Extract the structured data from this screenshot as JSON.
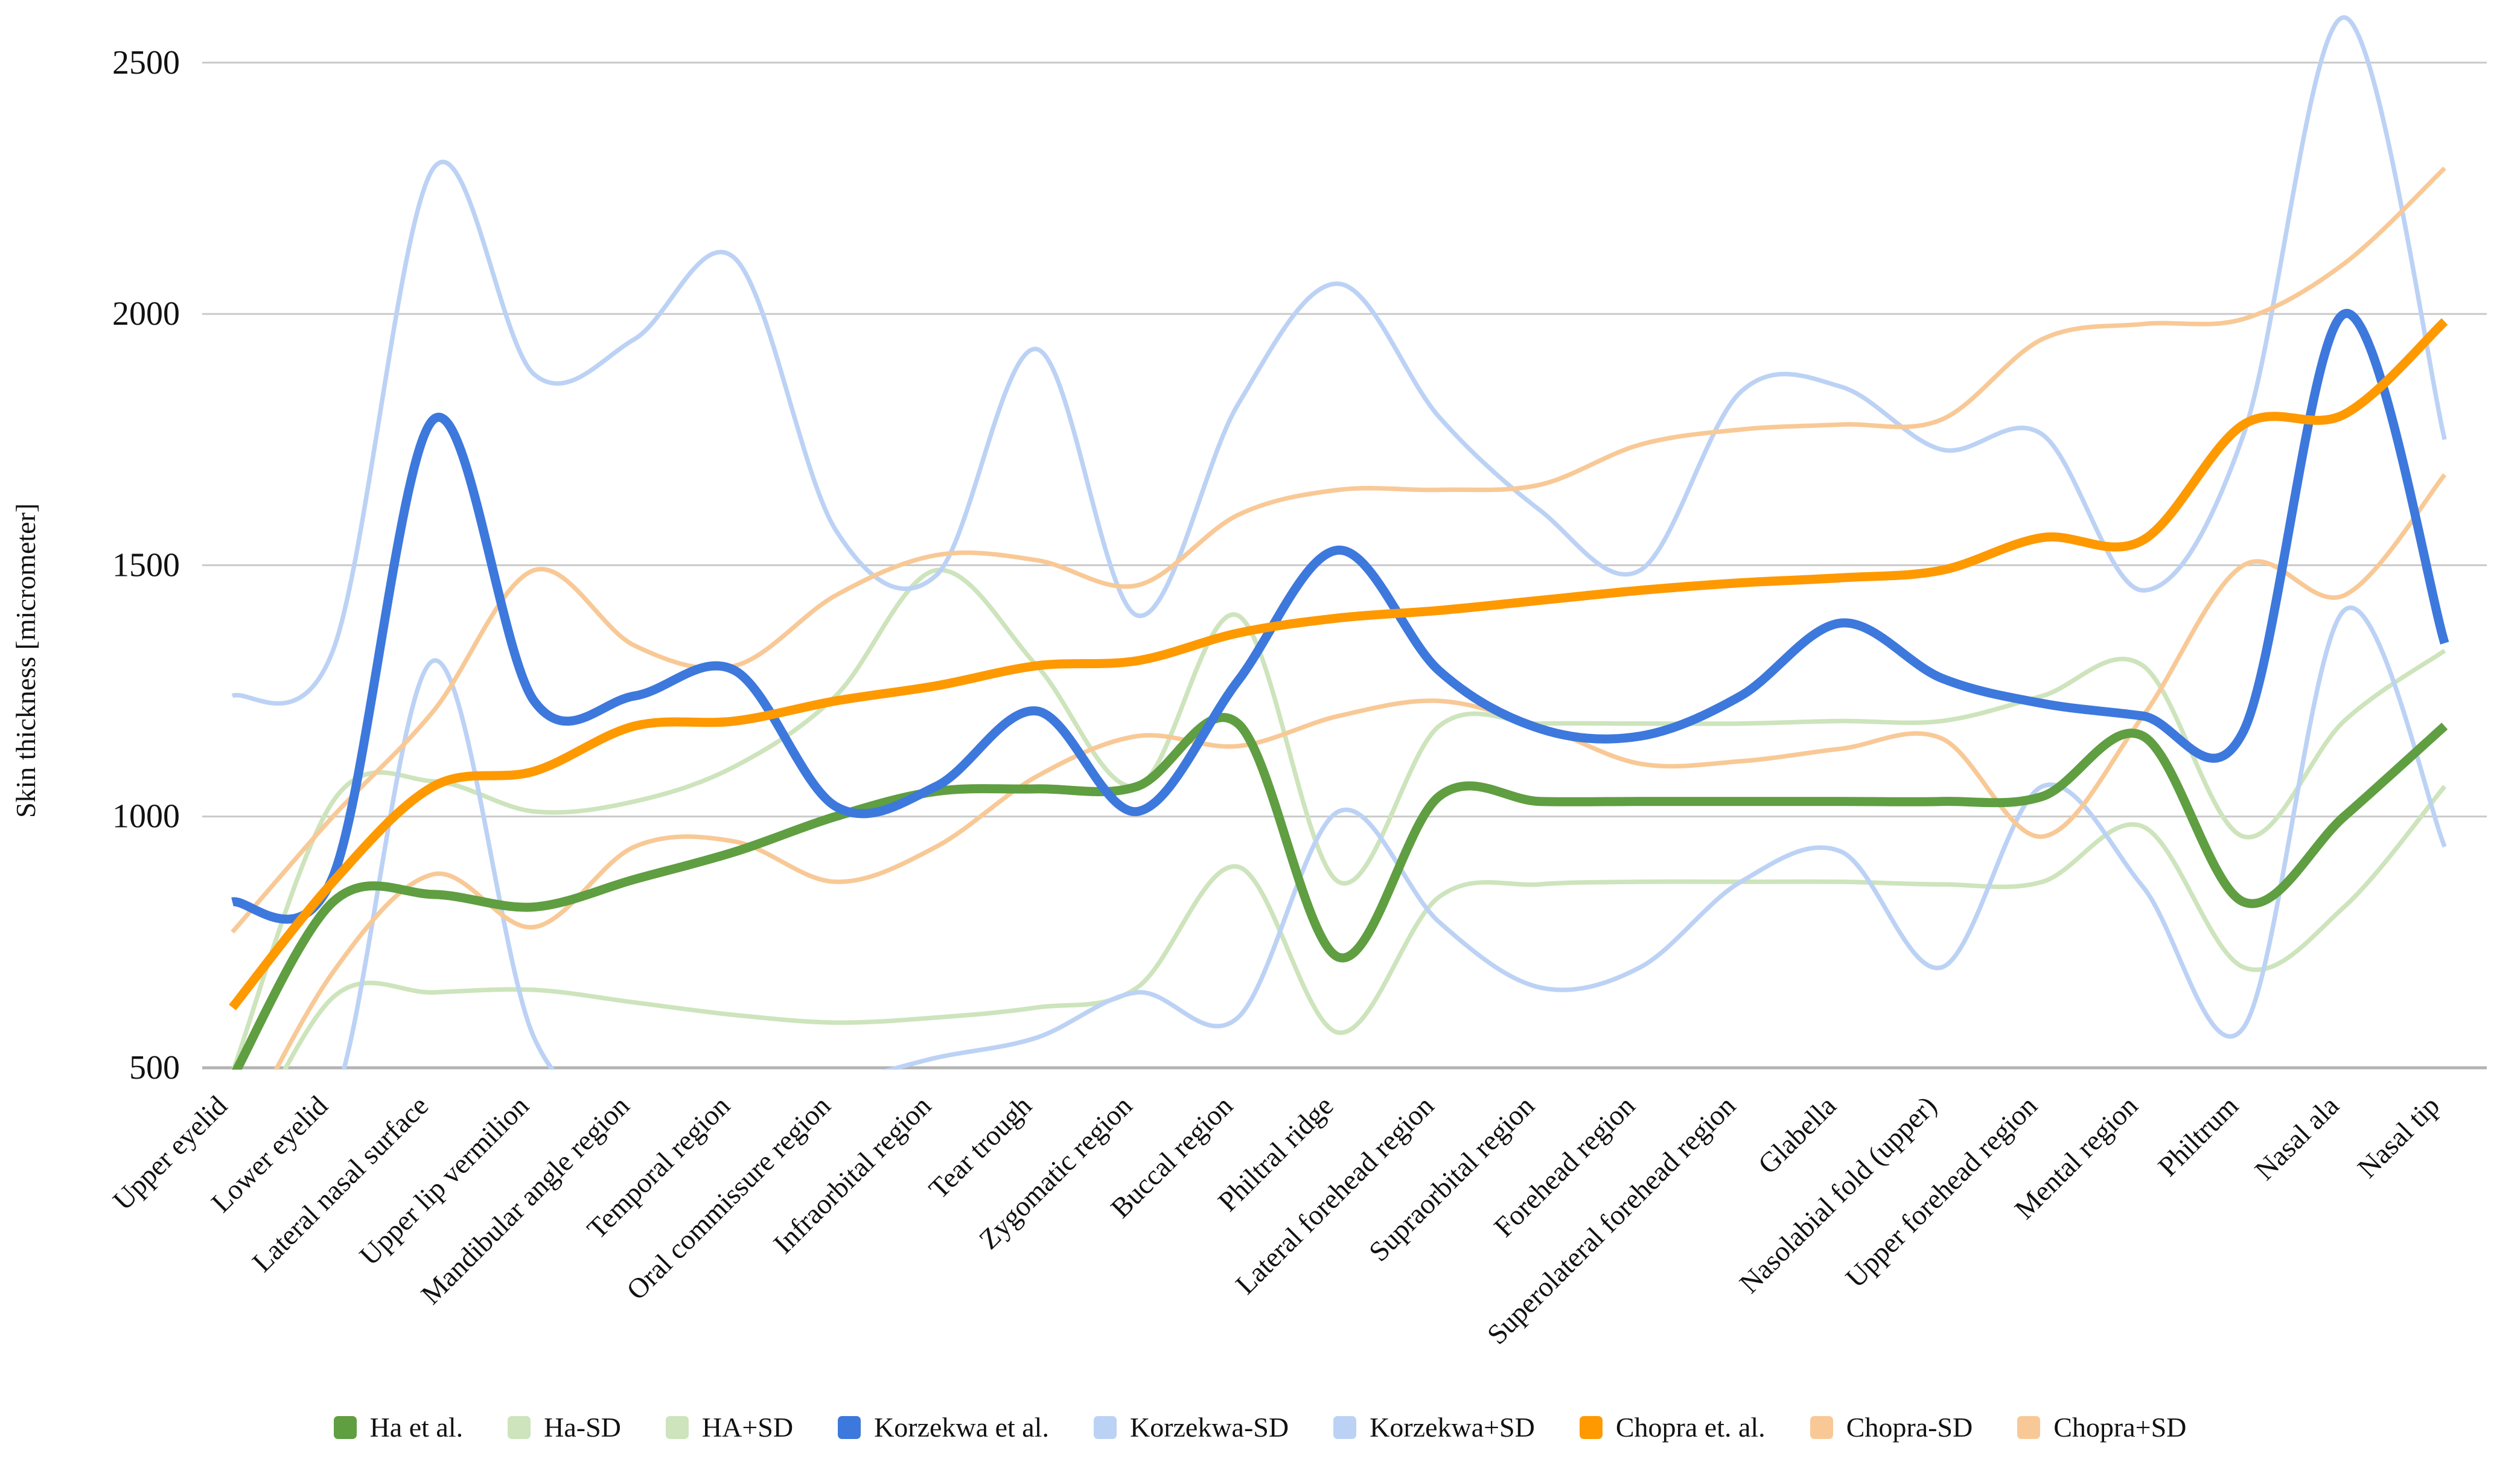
{
  "chart_data": {
    "type": "line",
    "title": "",
    "ylabel": "Skin thickness [micrometer]",
    "xlabel": "",
    "ylim": [
      500,
      2500
    ],
    "yticks": [
      500,
      1000,
      1500,
      2000,
      2500
    ],
    "grid": "horizontal",
    "legend_position": "bottom",
    "line_style": "smooth",
    "categories": [
      "Upper eyelid",
      "Lower eyelid",
      "Lateral nasal surface",
      "Upper lip vermilion",
      "Mandibular angle region",
      "Temporal region",
      "Oral commissure region",
      "Infraorbital region",
      "Tear trough",
      "Zygomatic region",
      "Buccal region",
      "Philtral ridge",
      "Lateral forehead region",
      "Supraorbital region",
      "Forehead region",
      "Superolateral forehead region",
      "Glabella",
      "Nasolabial fold (upper)",
      "Upper forehead region",
      "Mental region",
      "Philtrum",
      "Nasal ala",
      "Nasal tip"
    ],
    "series": [
      {
        "name": "Ha-SD",
        "color": "#cde4bc",
        "role": "sd",
        "values": [
          290,
          640,
          650,
          655,
          630,
          605,
          590,
          600,
          620,
          660,
          900,
          570,
          840,
          865,
          870,
          870,
          870,
          865,
          870,
          980,
          700,
          820,
          1060
        ]
      },
      {
        "name": "HA+SD",
        "color": "#cde4bc",
        "role": "sd",
        "values": [
          490,
          1030,
          1070,
          1010,
          1030,
          1100,
          1240,
          1490,
          1300,
          1060,
          1400,
          870,
          1180,
          1185,
          1185,
          1185,
          1190,
          1190,
          1240,
          1300,
          960,
          1190,
          1330
        ]
      },
      {
        "name": "Korzekwa-SD",
        "color": "#bcd2f5",
        "role": "sd",
        "values": [
          420,
          430,
          1310,
          560,
          430,
          450,
          470,
          520,
          560,
          650,
          600,
          1010,
          790,
          660,
          700,
          870,
          930,
          700,
          1060,
          860,
          580,
          1410,
          940
        ]
      },
      {
        "name": "Korzekwa+SD",
        "color": "#bcd2f5",
        "role": "sd",
        "values": [
          1240,
          1330,
          2290,
          1880,
          1950,
          2110,
          1570,
          1480,
          1930,
          1400,
          1820,
          2060,
          1795,
          1610,
          1490,
          1845,
          1855,
          1730,
          1760,
          1450,
          1760,
          2590,
          1750
        ]
      },
      {
        "name": "Chopra-SD",
        "color": "#f8c996",
        "role": "sd",
        "values": [
          330,
          690,
          885,
          780,
          940,
          950,
          870,
          940,
          1080,
          1160,
          1140,
          1200,
          1230,
          1180,
          1105,
          1110,
          1135,
          1155,
          960,
          1200,
          1500,
          1440,
          1680
        ]
      },
      {
        "name": "Chopra+SD",
        "color": "#f8c996",
        "role": "sd",
        "values": [
          770,
          1000,
          1210,
          1490,
          1340,
          1300,
          1440,
          1520,
          1510,
          1460,
          1600,
          1650,
          1650,
          1660,
          1740,
          1770,
          1780,
          1790,
          1950,
          1980,
          1990,
          2100,
          2290
        ]
      },
      {
        "name": "Ha et al.",
        "color": "#5f9e41",
        "role": "mean",
        "values": [
          480,
          830,
          845,
          820,
          875,
          930,
          1000,
          1050,
          1055,
          1060,
          1185,
          720,
          1040,
          1030,
          1030,
          1030,
          1030,
          1030,
          1040,
          1160,
          830,
          1000,
          1180
        ]
      },
      {
        "name": "Korzekwa et al.",
        "color": "#3d78dd",
        "role": "mean",
        "values": [
          830,
          880,
          1790,
          1230,
          1240,
          1290,
          1020,
          1060,
          1210,
          1010,
          1270,
          1530,
          1290,
          1175,
          1160,
          1240,
          1385,
          1275,
          1225,
          1200,
          1170,
          2000,
          1345
        ]
      },
      {
        "name": "Chopra et. al.",
        "color": "#fe9900",
        "role": "mean",
        "values": [
          620,
          870,
          1060,
          1090,
          1180,
          1190,
          1230,
          1260,
          1300,
          1310,
          1365,
          1395,
          1410,
          1430,
          1450,
          1465,
          1475,
          1490,
          1555,
          1550,
          1780,
          1800,
          1985
        ]
      }
    ],
    "legend_order": [
      "Ha et al.",
      "Ha-SD",
      "HA+SD",
      "Korzekwa et al.",
      "Korzekwa-SD",
      "Korzekwa+SD",
      "Chopra et. al.",
      "Chopra-SD",
      "Chopra+SD"
    ],
    "colors": {
      "gridline": "#c9c9c9",
      "baseline": "#b3b3b3",
      "tick_text": "#111111"
    }
  }
}
